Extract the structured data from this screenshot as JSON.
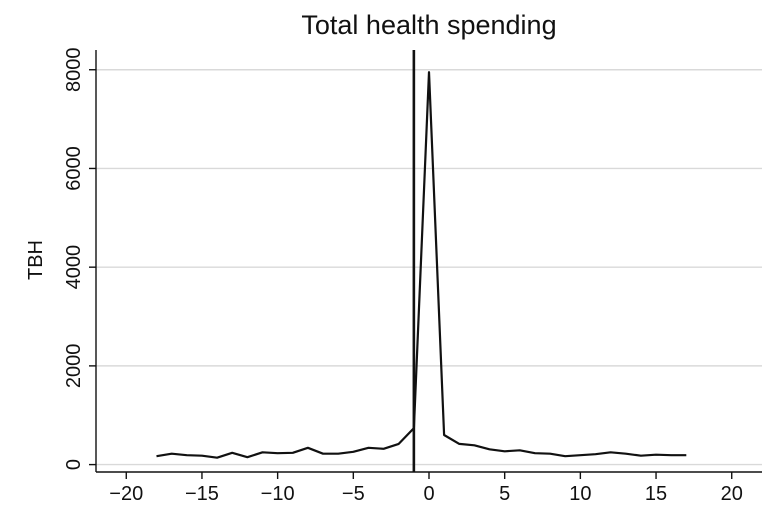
{
  "chart_data": {
    "type": "line",
    "title": "Total health spending",
    "xlabel": "",
    "ylabel": "TBH",
    "xlim": [
      -22,
      22
    ],
    "ylim": [
      -150,
      8400
    ],
    "xticks": [
      -20,
      -15,
      -10,
      -5,
      0,
      5,
      10,
      15,
      20
    ],
    "xtick_labels": [
      "−20",
      "−15",
      "−10",
      "−5",
      "0",
      "5",
      "10",
      "15",
      "20"
    ],
    "yticks": [
      0,
      2000,
      4000,
      6000,
      8000
    ],
    "ytick_labels": [
      "0",
      "2000",
      "4000",
      "6000",
      "8000"
    ],
    "grid": true,
    "legend": "none",
    "reference_line": {
      "x": -1
    },
    "colors": {
      "line": "#111111",
      "grid": "#d9d9d9",
      "axis": "#111111"
    },
    "series": [
      {
        "x": [
          -18,
          -17,
          -16,
          -15,
          -14,
          -13,
          -12,
          -11,
          -10,
          -9,
          -8,
          -7,
          -6,
          -5,
          -4,
          -3,
          -2,
          -1,
          0,
          1,
          2,
          3,
          4,
          5,
          6,
          7,
          8,
          9,
          10,
          11,
          12,
          13,
          14,
          15,
          16,
          17
        ],
        "values": [
          170,
          220,
          190,
          180,
          140,
          240,
          150,
          250,
          230,
          240,
          340,
          220,
          220,
          260,
          340,
          320,
          420,
          740,
          7950,
          600,
          420,
          390,
          310,
          270,
          290,
          230,
          220,
          170,
          190,
          210,
          250,
          220,
          180,
          200,
          190,
          190
        ]
      }
    ]
  }
}
